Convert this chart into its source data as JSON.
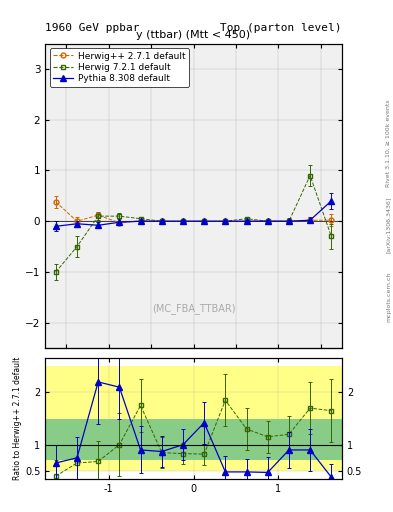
{
  "title_left": "1960 GeV ppbar",
  "title_right": "Top (parton level)",
  "plot_title": "y (ttbar) (Mtt < 450)",
  "watermark": "(MC_FBA_TTBAR)",
  "right_label_1": "Rivet 3.1.10, ≥ 100k events",
  "right_label_2": "[arXiv:1306.3436]",
  "right_label_3": "mcplots.cern.ch",
  "ylabel_ratio": "Ratio to Herwig++ 2.7.1 default",
  "xlim": [
    -1.75,
    1.75
  ],
  "ylim_main": [
    -2.5,
    3.5
  ],
  "ylim_ratio": [
    0.35,
    2.65
  ],
  "herwig_pp_color": "#cc6600",
  "herwig_72_color": "#336600",
  "pythia_color": "#0000cc",
  "legend_entries": [
    "Herwig++ 2.7.1 default",
    "Herwig 7.2.1 default",
    "Pythia 8.308 default"
  ],
  "bin_edges": [
    -1.75,
    -1.5,
    -1.25,
    -1.0,
    -0.75,
    -0.5,
    -0.25,
    0.0,
    0.25,
    0.5,
    0.75,
    1.0,
    1.25,
    1.5,
    1.75
  ],
  "herwig_pp_y": [
    0.38,
    0.0,
    0.12,
    -0.03,
    0.01,
    0.0,
    0.0,
    0.0,
    0.0,
    0.0,
    0.01,
    0.0,
    0.02,
    0.02
  ],
  "herwig_pp_yerr": [
    0.12,
    0.08,
    0.05,
    0.03,
    0.02,
    0.01,
    0.01,
    0.01,
    0.01,
    0.01,
    0.02,
    0.03,
    0.05,
    0.12
  ],
  "herwig_72_y": [
    -1.0,
    -0.5,
    0.1,
    0.1,
    0.05,
    0.0,
    0.0,
    0.0,
    0.0,
    0.05,
    0.0,
    0.0,
    0.9,
    -0.3
  ],
  "herwig_72_yerr": [
    0.15,
    0.2,
    0.08,
    0.06,
    0.04,
    0.02,
    0.01,
    0.01,
    0.02,
    0.03,
    0.04,
    0.06,
    0.2,
    0.25
  ],
  "pythia_y": [
    -0.1,
    -0.05,
    -0.08,
    -0.02,
    0.0,
    0.0,
    0.0,
    0.0,
    0.0,
    0.0,
    0.0,
    0.0,
    0.02,
    0.4
  ],
  "pythia_yerr": [
    0.1,
    0.05,
    0.06,
    0.03,
    0.02,
    0.01,
    0.01,
    0.01,
    0.01,
    0.01,
    0.02,
    0.03,
    0.06,
    0.15
  ],
  "ratio_herwig72_y": [
    0.4,
    0.65,
    0.68,
    1.0,
    1.75,
    0.85,
    0.83,
    0.82,
    1.85,
    1.3,
    1.15,
    1.2,
    1.7,
    1.65
  ],
  "ratio_herwig72_yerr": [
    0.3,
    0.35,
    0.4,
    0.6,
    0.5,
    0.3,
    0.2,
    0.2,
    0.5,
    0.4,
    0.3,
    0.35,
    0.5,
    0.6
  ],
  "ratio_pythia_y": [
    0.65,
    0.75,
    2.2,
    2.1,
    0.9,
    0.87,
    1.0,
    1.42,
    0.48,
    0.48,
    0.47,
    0.9,
    0.9,
    0.38
  ],
  "ratio_pythia_yerr": [
    0.35,
    0.4,
    0.8,
    0.6,
    0.45,
    0.3,
    0.3,
    0.4,
    0.3,
    0.25,
    0.3,
    0.35,
    0.4,
    0.25
  ],
  "yellow_lo": [
    0.5,
    0.5,
    0.5,
    0.5,
    0.5,
    0.5,
    0.5,
    0.5,
    0.5,
    0.5,
    0.5,
    0.5,
    0.5,
    0.5
  ],
  "yellow_hi": [
    2.5,
    2.5,
    2.5,
    2.5,
    2.5,
    2.5,
    2.5,
    2.5,
    2.5,
    2.5,
    2.5,
    2.5,
    2.5,
    2.5
  ],
  "green_lo": [
    0.7,
    0.7,
    0.7,
    0.7,
    0.7,
    0.7,
    0.7,
    0.7,
    0.7,
    0.7,
    0.7,
    0.7,
    0.7,
    0.7
  ],
  "green_hi": [
    1.5,
    1.5,
    1.5,
    1.5,
    1.5,
    1.5,
    1.5,
    1.5,
    1.5,
    1.5,
    1.5,
    1.5,
    1.5,
    1.5
  ]
}
